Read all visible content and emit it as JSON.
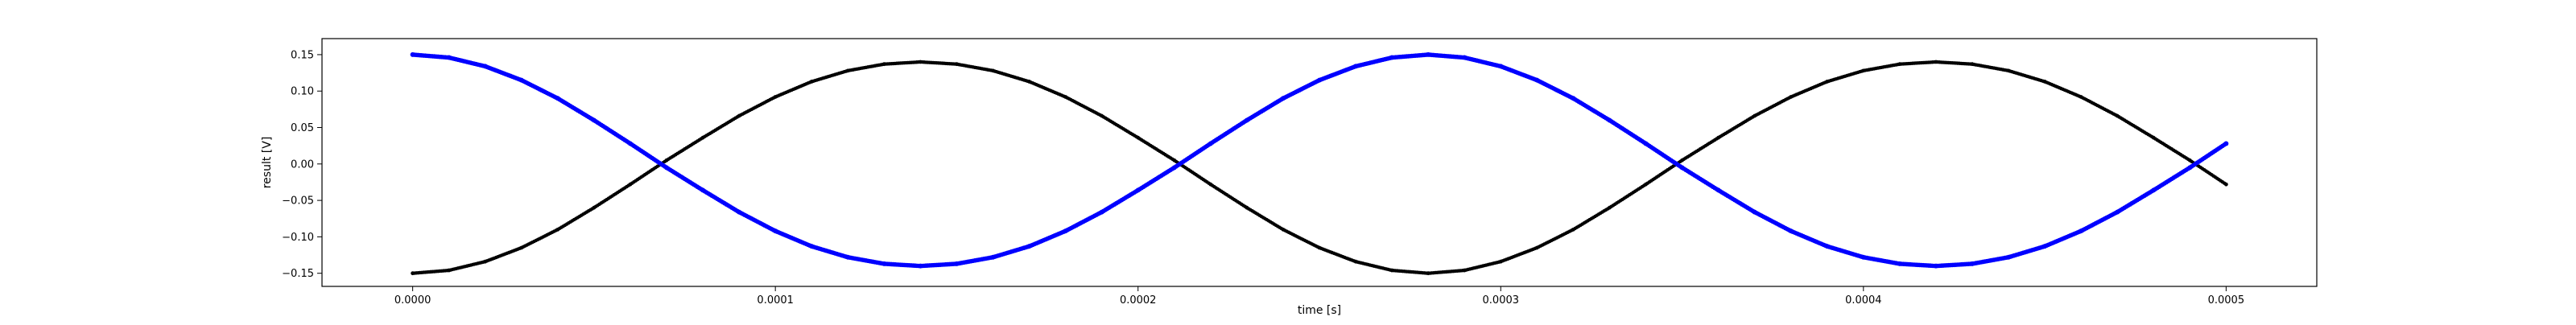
{
  "chart_data": {
    "type": "scatter",
    "title": "",
    "xlabel": "time [s]",
    "ylabel": "result [V]",
    "xlim": [
      -2.5e-05,
      0.000525
    ],
    "ylim": [
      -0.168,
      0.172
    ],
    "grid": false,
    "x_ticks": [
      0.0,
      0.0001,
      0.0002,
      0.0003,
      0.0004,
      0.0005
    ],
    "x_tick_labels": [
      "0.0000",
      "0.0001",
      "0.0002",
      "0.0003",
      "0.0004",
      "0.0005"
    ],
    "y_ticks": [
      0.15,
      0.1,
      0.05,
      0.0,
      -0.05,
      -0.1,
      -0.15
    ],
    "y_tick_labels": [
      "0.15",
      "0.10",
      "0.05",
      "0.00",
      "−0.05",
      "−0.10",
      "−0.15"
    ],
    "series": [
      {
        "color": "#000000",
        "marker": "small-dot",
        "x": [
          0.0,
          1e-05,
          2e-05,
          3e-05,
          4e-05,
          5e-05,
          6e-05,
          7e-05,
          8e-05,
          9e-05,
          0.0001,
          0.00011,
          0.00012,
          0.00013,
          0.00014,
          0.00015,
          0.00016,
          0.00017,
          0.00018,
          0.00019,
          0.0002,
          0.00021,
          0.00022,
          0.00023,
          0.00024,
          0.00025,
          0.00026,
          0.00027,
          0.00028,
          0.00029,
          0.0003,
          0.00031,
          0.00032,
          0.00033,
          0.00034,
          0.00035,
          0.00036,
          0.00037,
          0.00038,
          0.00039,
          0.0004,
          0.00041,
          0.00042,
          0.00043,
          0.00044,
          0.00045,
          0.00046,
          0.00047,
          0.00048,
          0.00049,
          0.0005
        ],
        "y": [
          -0.15,
          -0.146,
          -0.134,
          -0.115,
          -0.09,
          -0.06,
          -0.028,
          0.005,
          0.036,
          0.066,
          0.092,
          0.113,
          0.128,
          0.137,
          0.14,
          0.137,
          0.128,
          0.113,
          0.092,
          0.066,
          0.036,
          0.005,
          -0.028,
          -0.06,
          -0.09,
          -0.115,
          -0.134,
          -0.146,
          -0.15,
          -0.146,
          -0.134,
          -0.115,
          -0.09,
          -0.06,
          -0.028,
          0.005,
          0.036,
          0.066,
          0.092,
          0.113,
          0.128,
          0.137,
          0.14,
          0.137,
          0.128,
          0.113,
          0.092,
          0.066,
          0.036,
          0.005,
          -0.028
        ]
      },
      {
        "color": "#0000ff",
        "marker": "dot",
        "x": [
          0.0,
          1e-05,
          2e-05,
          3e-05,
          4e-05,
          5e-05,
          6e-05,
          7e-05,
          8e-05,
          9e-05,
          0.0001,
          0.00011,
          0.00012,
          0.00013,
          0.00014,
          0.00015,
          0.00016,
          0.00017,
          0.00018,
          0.00019,
          0.0002,
          0.00021,
          0.00022,
          0.00023,
          0.00024,
          0.00025,
          0.00026,
          0.00027,
          0.00028,
          0.00029,
          0.0003,
          0.00031,
          0.00032,
          0.00033,
          0.00034,
          0.00035,
          0.00036,
          0.00037,
          0.00038,
          0.00039,
          0.0004,
          0.00041,
          0.00042,
          0.00043,
          0.00044,
          0.00045,
          0.00046,
          0.00047,
          0.00048,
          0.00049,
          0.0005
        ],
        "y": [
          0.15,
          0.146,
          0.134,
          0.115,
          0.09,
          0.06,
          0.028,
          -0.005,
          -0.036,
          -0.066,
          -0.092,
          -0.113,
          -0.128,
          -0.137,
          -0.14,
          -0.137,
          -0.128,
          -0.113,
          -0.092,
          -0.066,
          -0.036,
          -0.005,
          0.028,
          0.06,
          0.09,
          0.115,
          0.134,
          0.146,
          0.15,
          0.146,
          0.134,
          0.115,
          0.09,
          0.06,
          0.028,
          -0.005,
          -0.036,
          -0.066,
          -0.092,
          -0.113,
          -0.128,
          -0.137,
          -0.14,
          -0.137,
          -0.128,
          -0.113,
          -0.092,
          -0.066,
          -0.036,
          -0.005,
          0.028
        ]
      }
    ]
  }
}
